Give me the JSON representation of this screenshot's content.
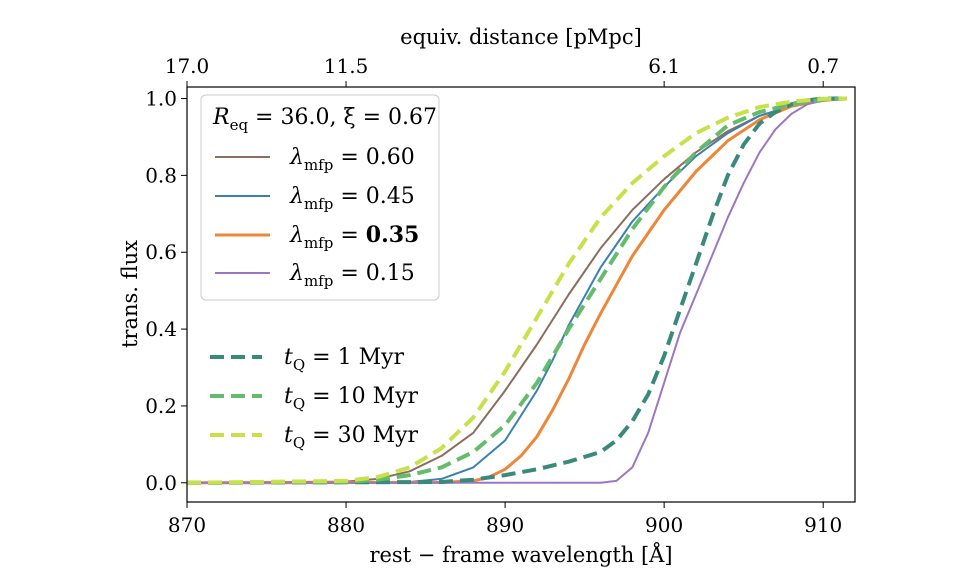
{
  "chart_data": {
    "type": "line",
    "xlabel": "rest − frame wavelength [Å]",
    "ylabel": "trans. flux",
    "top_xlabel": "equiv. distance [pMpc]",
    "xlim": [
      870,
      912
    ],
    "ylim": [
      -0.05,
      1.03
    ],
    "x_ticks": [
      870,
      880,
      890,
      900,
      910
    ],
    "y_ticks": [
      "0.0",
      "0.2",
      "0.4",
      "0.6",
      "0.8",
      "1.0"
    ],
    "top_ticks": [
      {
        "wavelength": 870,
        "label": "17.0"
      },
      {
        "wavelength": 880,
        "label": "11.5"
      },
      {
        "wavelength": 900,
        "label": "6.1"
      },
      {
        "wavelength": 910,
        "label": "0.7"
      }
    ],
    "legend_title": {
      "base": "R",
      "sub": "eq",
      "rest": " = 36.0, ξ = 0.67"
    },
    "legend_placement": "upper-left",
    "series": [
      {
        "name": "λmfp = 0.60",
        "symbol": "λ",
        "sub": "mfp",
        "value": " = 0.60",
        "bold": false,
        "color": "#8c6d5c",
        "style": "solid",
        "width": 2,
        "x": [
          870,
          880,
          882,
          884,
          886,
          888,
          890,
          892,
          894,
          896,
          898,
          900,
          902,
          904,
          906,
          908,
          910,
          911.5
        ],
        "y": [
          0,
          0.003,
          0.01,
          0.03,
          0.07,
          0.13,
          0.24,
          0.36,
          0.49,
          0.61,
          0.71,
          0.79,
          0.86,
          0.915,
          0.955,
          0.98,
          0.995,
          1.0
        ]
      },
      {
        "name": "λmfp = 0.45",
        "symbol": "λ",
        "sub": "mfp",
        "value": " = 0.45",
        "bold": false,
        "color": "#3c7fb0",
        "style": "solid",
        "width": 2,
        "x": [
          870,
          884,
          886,
          888,
          890,
          892,
          893,
          894,
          896,
          898,
          900,
          902,
          904,
          906,
          908,
          910,
          911.5
        ],
        "y": [
          0,
          0.002,
          0.01,
          0.04,
          0.11,
          0.24,
          0.32,
          0.41,
          0.56,
          0.68,
          0.77,
          0.85,
          0.91,
          0.955,
          0.98,
          0.995,
          1.0
        ]
      },
      {
        "name": "λmfp = 0.35",
        "symbol": "λ",
        "sub": "mfp",
        "value": " = ",
        "bold_value": "0.35",
        "bold": true,
        "color": "#ef8536",
        "style": "solid",
        "width": 3,
        "x": [
          870,
          886,
          888,
          889,
          890,
          891,
          892,
          893,
          894,
          895,
          896,
          898,
          900,
          902,
          904,
          906,
          908,
          910,
          911.5
        ],
        "y": [
          0,
          0.001,
          0.005,
          0.015,
          0.035,
          0.07,
          0.12,
          0.19,
          0.27,
          0.36,
          0.44,
          0.59,
          0.71,
          0.81,
          0.89,
          0.945,
          0.98,
          0.995,
          1.0
        ]
      },
      {
        "name": "λmfp = 0.15",
        "symbol": "λ",
        "sub": "mfp",
        "value": " = 0.15",
        "bold": false,
        "color": "#9a77c4",
        "style": "solid",
        "width": 2,
        "x": [
          870,
          896,
          897,
          898,
          899,
          900,
          901,
          902,
          903,
          904,
          905,
          906,
          907,
          908,
          909,
          910,
          911.5
        ],
        "y": [
          0,
          0,
          0.005,
          0.04,
          0.13,
          0.26,
          0.39,
          0.49,
          0.59,
          0.69,
          0.78,
          0.86,
          0.92,
          0.96,
          0.985,
          0.995,
          1.0
        ]
      },
      {
        "name": "tQ = 1 Myr",
        "symbol": "t",
        "sub": "Q",
        "value": " = 1 Myr",
        "bold": false,
        "color": "#3a8a7c",
        "style": "dashed",
        "width": 4,
        "x": [
          870,
          886,
          888,
          890,
          892,
          894,
          896,
          897,
          898,
          899,
          900,
          901,
          902,
          903,
          904,
          905,
          906,
          907,
          908,
          909,
          910,
          911.5
        ],
        "y": [
          0,
          0.002,
          0.008,
          0.02,
          0.035,
          0.055,
          0.08,
          0.11,
          0.16,
          0.23,
          0.33,
          0.45,
          0.57,
          0.69,
          0.8,
          0.88,
          0.935,
          0.965,
          0.985,
          0.995,
          1.0,
          1.0
        ]
      },
      {
        "name": "tQ = 10 Myr",
        "symbol": "t",
        "sub": "Q",
        "value": " = 10 Myr",
        "bold": false,
        "color": "#64bb6b",
        "style": "dashed",
        "width": 4,
        "x": [
          870,
          880,
          882,
          884,
          886,
          888,
          890,
          892,
          893,
          894,
          896,
          898,
          900,
          902,
          904,
          906,
          908,
          910,
          911.5
        ],
        "y": [
          0,
          0.002,
          0.008,
          0.02,
          0.04,
          0.08,
          0.15,
          0.26,
          0.33,
          0.4,
          0.53,
          0.66,
          0.77,
          0.86,
          0.93,
          0.965,
          0.985,
          0.997,
          1.0
        ]
      },
      {
        "name": "tQ = 30 Myr",
        "symbol": "t",
        "sub": "Q",
        "value": " = 30 Myr",
        "bold": false,
        "color": "#c8e04a",
        "style": "dashed",
        "width": 4,
        "x": [
          870,
          880,
          882,
          884,
          886,
          888,
          890,
          892,
          894,
          896,
          898,
          900,
          902,
          904,
          906,
          908,
          910,
          911.5
        ],
        "y": [
          0,
          0.005,
          0.015,
          0.04,
          0.09,
          0.17,
          0.29,
          0.43,
          0.57,
          0.69,
          0.78,
          0.85,
          0.91,
          0.95,
          0.978,
          0.992,
          0.999,
          1.0
        ]
      }
    ]
  }
}
